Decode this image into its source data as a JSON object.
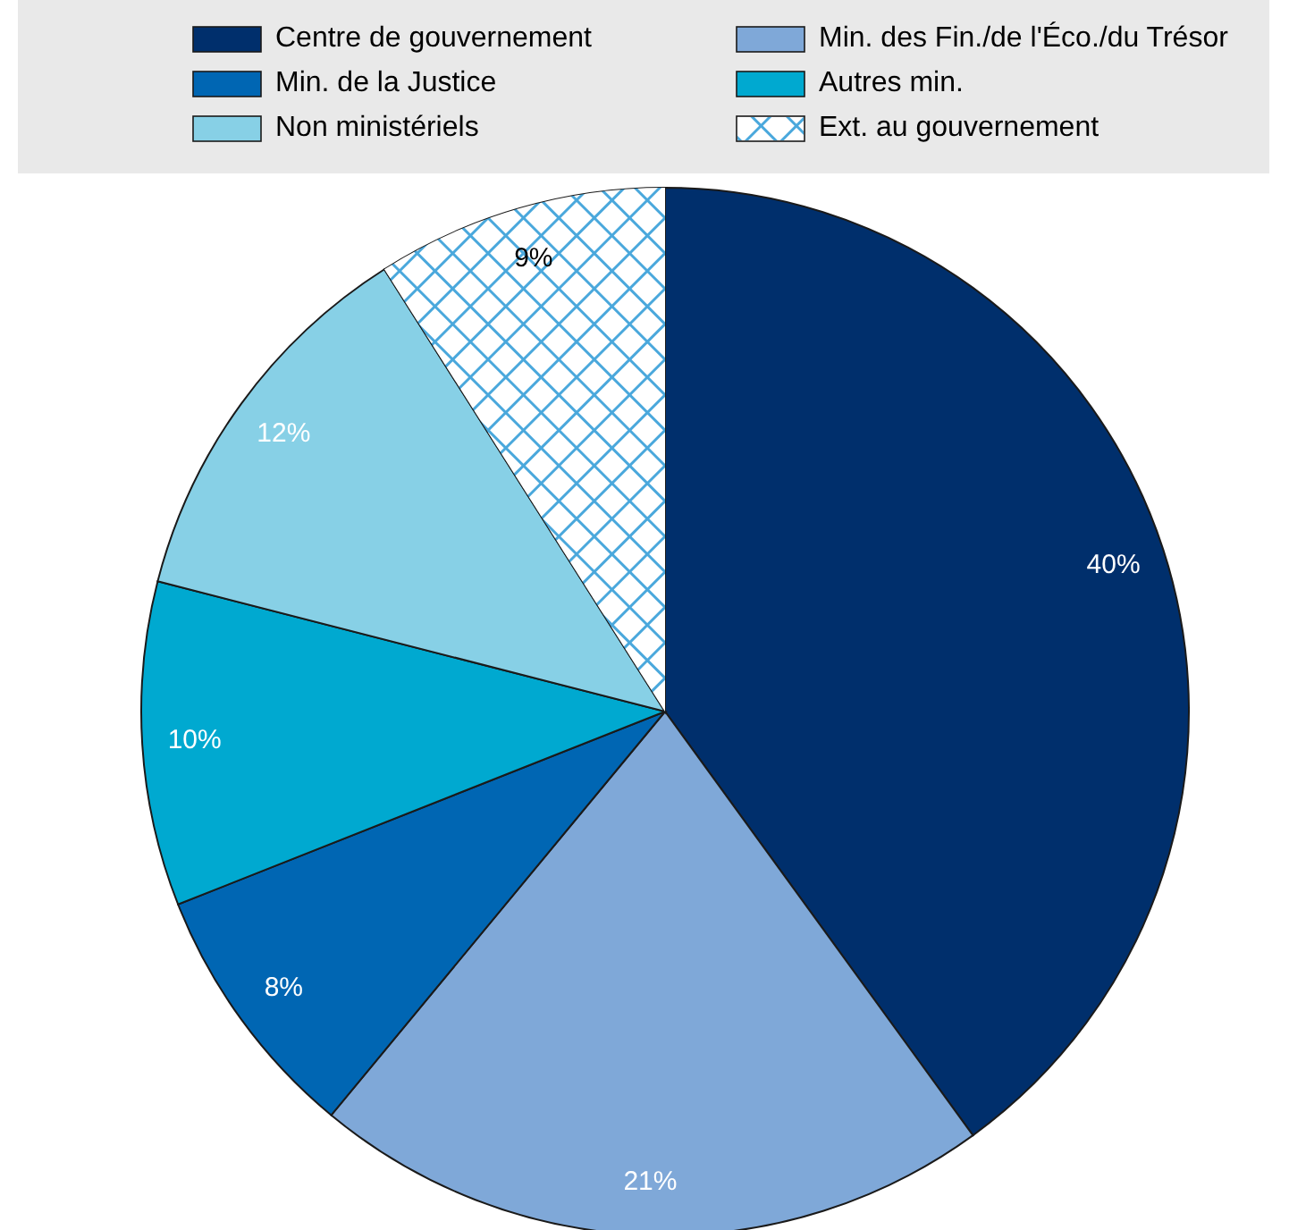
{
  "chart_data": {
    "type": "pie",
    "categories": [
      "Centre de gouvernement",
      "Min. des Fin./de l'Éco./du Trésor",
      "Min. de la Justice",
      "Autres min.",
      "Non ministériels",
      "Ext. au gouvernement"
    ],
    "values": [
      40,
      21,
      8,
      10,
      12,
      9
    ],
    "colors": [
      "#002f6c",
      "#7fa8d8",
      "#0066b3",
      "#00a9d0",
      "#87d0e6",
      "#ffffff"
    ],
    "value_labels": [
      "40%",
      "21%",
      "8%",
      "10%",
      "12%",
      "9%"
    ],
    "legend": "top"
  }
}
